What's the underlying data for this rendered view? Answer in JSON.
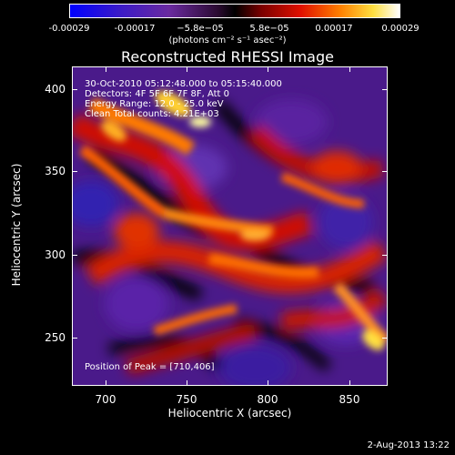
{
  "title": "Reconstructed RHESSI Image",
  "colorbar": {
    "ticks": [
      "-0.00029",
      "-0.00017",
      "−5.8e−05",
      "5.8e−05",
      "0.00017",
      "0.00029"
    ],
    "units": "(photons cm⁻² s⁻¹ asec⁻²)"
  },
  "overlay": {
    "time_range": "30-Oct-2010 05:12:48.000 to 05:15:40.000",
    "detectors": "Detectors: 4F 5F 6F 7F 8F, Att 0",
    "energy": "Energy Range: 12.0 - 25.0 keV",
    "method": "Clean    Total counts: 4.21E+03",
    "peak": "Position of Peak = [710,406]"
  },
  "axes": {
    "xlabel": "Heliocentric X (arcsec)",
    "ylabel": "Heliocentric Y (arcsec)",
    "xticks": [
      "700",
      "750",
      "800",
      "850"
    ],
    "yticks": [
      "250",
      "300",
      "350",
      "400"
    ]
  },
  "footer": "2-Aug-2013 13:22"
}
